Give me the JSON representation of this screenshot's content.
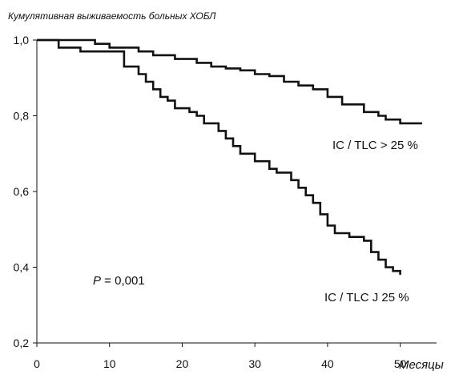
{
  "chart_data": {
    "type": "line",
    "title": "Кумулятивная выживаемость больных ХОБЛ",
    "xlabel": "Месяцы",
    "ylabel": "",
    "xlim": [
      0,
      55
    ],
    "ylim": [
      0.2,
      1.0
    ],
    "x_ticks": [
      "0",
      "10",
      "20",
      "30",
      "40",
      "50"
    ],
    "y_ticks": [
      "0,2",
      "0,4",
      "0,6",
      "0,8",
      "1,0"
    ],
    "grid": false,
    "series": [
      {
        "name": "IC / TLC > 25 %",
        "step": true,
        "x": [
          0,
          8,
          10,
          14,
          16,
          19,
          22,
          24,
          26,
          28,
          30,
          32,
          34,
          36,
          38,
          40,
          42,
          45,
          47,
          48,
          50,
          53
        ],
        "y": [
          1.0,
          0.99,
          0.98,
          0.97,
          0.96,
          0.95,
          0.94,
          0.93,
          0.925,
          0.92,
          0.91,
          0.905,
          0.89,
          0.88,
          0.87,
          0.85,
          0.83,
          0.81,
          0.8,
          0.79,
          0.78,
          0.78
        ]
      },
      {
        "name": "IC / TLC J 25 %",
        "step": true,
        "x": [
          0,
          3,
          6,
          10,
          12,
          14,
          15,
          16,
          17,
          18,
          19,
          21,
          22,
          23,
          25,
          26,
          27,
          28,
          30,
          32,
          33,
          35,
          36,
          37,
          38,
          39,
          40,
          41,
          43,
          45,
          46,
          47,
          48,
          49,
          50
        ],
        "y": [
          1.0,
          0.98,
          0.97,
          0.97,
          0.93,
          0.91,
          0.89,
          0.87,
          0.85,
          0.84,
          0.82,
          0.81,
          0.8,
          0.78,
          0.76,
          0.74,
          0.72,
          0.7,
          0.68,
          0.66,
          0.65,
          0.63,
          0.61,
          0.59,
          0.57,
          0.54,
          0.51,
          0.49,
          0.48,
          0.47,
          0.44,
          0.42,
          0.4,
          0.39,
          0.38
        ]
      }
    ],
    "annotations": {
      "series1_label": "IC / TLC > 25 %",
      "series2_label": "IC / TLC J 25 %",
      "p_letter": "P",
      "p_rest": " = 0,001"
    }
  }
}
